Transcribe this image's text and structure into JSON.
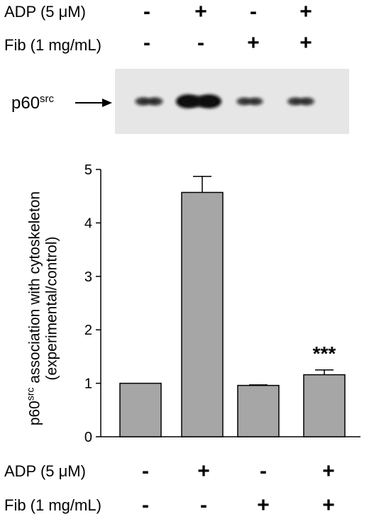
{
  "conditions": {
    "adp_label": "ADP (5 μM)",
    "fib_label": "Fib (1 mg/mL)",
    "adp_signs": [
      "-",
      "+",
      "-",
      "+"
    ],
    "fib_signs": [
      "-",
      "-",
      "+",
      "+"
    ]
  },
  "blot": {
    "label_base": "p60",
    "label_sup": "src",
    "band_intensity": [
      0.35,
      1.0,
      0.3,
      0.32
    ]
  },
  "colors": {
    "bar_fill": "#a6a6a6",
    "blot_bg": "#e6e6e6",
    "band": "#111111"
  },
  "chart_data": {
    "type": "bar",
    "categories": [
      "ADP-/Fib-",
      "ADP+/Fib-",
      "ADP-/Fib+",
      "ADP+/Fib+"
    ],
    "values": [
      1.0,
      4.57,
      0.96,
      1.16
    ],
    "errors": [
      0,
      0.3,
      0.01,
      0.09
    ],
    "annotations": [
      "",
      "",
      "",
      "***"
    ],
    "ylim": [
      0,
      5
    ],
    "yticks": [
      0,
      1,
      2,
      3,
      4,
      5
    ],
    "ylabel_line1_base": "p60",
    "ylabel_line1_sup": "src",
    "ylabel_line1_rest": " association with cytoskeleton",
    "ylabel_line2": "(experimental/control)",
    "grid": false
  }
}
